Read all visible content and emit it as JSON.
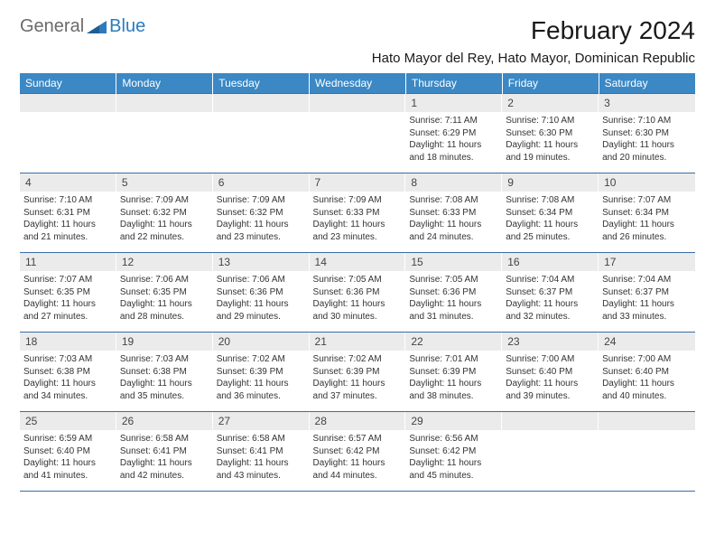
{
  "logo": {
    "text1": "General",
    "text2": "Blue"
  },
  "title": "February 2024",
  "location": "Hato Mayor del Rey, Hato Mayor, Dominican Republic",
  "colors": {
    "header_bg": "#3b88c4",
    "header_text": "#ffffff",
    "daynum_bg": "#ebebeb",
    "row_border": "#3b6ea5",
    "logo_gray": "#6b6b6b",
    "logo_blue": "#2b7bbd"
  },
  "days_of_week": [
    "Sunday",
    "Monday",
    "Tuesday",
    "Wednesday",
    "Thursday",
    "Friday",
    "Saturday"
  ],
  "weeks": [
    [
      {
        "blank": true
      },
      {
        "blank": true
      },
      {
        "blank": true
      },
      {
        "blank": true
      },
      {
        "num": "1",
        "sunrise": "Sunrise: 7:11 AM",
        "sunset": "Sunset: 6:29 PM",
        "daylight": "Daylight: 11 hours and 18 minutes."
      },
      {
        "num": "2",
        "sunrise": "Sunrise: 7:10 AM",
        "sunset": "Sunset: 6:30 PM",
        "daylight": "Daylight: 11 hours and 19 minutes."
      },
      {
        "num": "3",
        "sunrise": "Sunrise: 7:10 AM",
        "sunset": "Sunset: 6:30 PM",
        "daylight": "Daylight: 11 hours and 20 minutes."
      }
    ],
    [
      {
        "num": "4",
        "sunrise": "Sunrise: 7:10 AM",
        "sunset": "Sunset: 6:31 PM",
        "daylight": "Daylight: 11 hours and 21 minutes."
      },
      {
        "num": "5",
        "sunrise": "Sunrise: 7:09 AM",
        "sunset": "Sunset: 6:32 PM",
        "daylight": "Daylight: 11 hours and 22 minutes."
      },
      {
        "num": "6",
        "sunrise": "Sunrise: 7:09 AM",
        "sunset": "Sunset: 6:32 PM",
        "daylight": "Daylight: 11 hours and 23 minutes."
      },
      {
        "num": "7",
        "sunrise": "Sunrise: 7:09 AM",
        "sunset": "Sunset: 6:33 PM",
        "daylight": "Daylight: 11 hours and 23 minutes."
      },
      {
        "num": "8",
        "sunrise": "Sunrise: 7:08 AM",
        "sunset": "Sunset: 6:33 PM",
        "daylight": "Daylight: 11 hours and 24 minutes."
      },
      {
        "num": "9",
        "sunrise": "Sunrise: 7:08 AM",
        "sunset": "Sunset: 6:34 PM",
        "daylight": "Daylight: 11 hours and 25 minutes."
      },
      {
        "num": "10",
        "sunrise": "Sunrise: 7:07 AM",
        "sunset": "Sunset: 6:34 PM",
        "daylight": "Daylight: 11 hours and 26 minutes."
      }
    ],
    [
      {
        "num": "11",
        "sunrise": "Sunrise: 7:07 AM",
        "sunset": "Sunset: 6:35 PM",
        "daylight": "Daylight: 11 hours and 27 minutes."
      },
      {
        "num": "12",
        "sunrise": "Sunrise: 7:06 AM",
        "sunset": "Sunset: 6:35 PM",
        "daylight": "Daylight: 11 hours and 28 minutes."
      },
      {
        "num": "13",
        "sunrise": "Sunrise: 7:06 AM",
        "sunset": "Sunset: 6:36 PM",
        "daylight": "Daylight: 11 hours and 29 minutes."
      },
      {
        "num": "14",
        "sunrise": "Sunrise: 7:05 AM",
        "sunset": "Sunset: 6:36 PM",
        "daylight": "Daylight: 11 hours and 30 minutes."
      },
      {
        "num": "15",
        "sunrise": "Sunrise: 7:05 AM",
        "sunset": "Sunset: 6:36 PM",
        "daylight": "Daylight: 11 hours and 31 minutes."
      },
      {
        "num": "16",
        "sunrise": "Sunrise: 7:04 AM",
        "sunset": "Sunset: 6:37 PM",
        "daylight": "Daylight: 11 hours and 32 minutes."
      },
      {
        "num": "17",
        "sunrise": "Sunrise: 7:04 AM",
        "sunset": "Sunset: 6:37 PM",
        "daylight": "Daylight: 11 hours and 33 minutes."
      }
    ],
    [
      {
        "num": "18",
        "sunrise": "Sunrise: 7:03 AM",
        "sunset": "Sunset: 6:38 PM",
        "daylight": "Daylight: 11 hours and 34 minutes."
      },
      {
        "num": "19",
        "sunrise": "Sunrise: 7:03 AM",
        "sunset": "Sunset: 6:38 PM",
        "daylight": "Daylight: 11 hours and 35 minutes."
      },
      {
        "num": "20",
        "sunrise": "Sunrise: 7:02 AM",
        "sunset": "Sunset: 6:39 PM",
        "daylight": "Daylight: 11 hours and 36 minutes."
      },
      {
        "num": "21",
        "sunrise": "Sunrise: 7:02 AM",
        "sunset": "Sunset: 6:39 PM",
        "daylight": "Daylight: 11 hours and 37 minutes."
      },
      {
        "num": "22",
        "sunrise": "Sunrise: 7:01 AM",
        "sunset": "Sunset: 6:39 PM",
        "daylight": "Daylight: 11 hours and 38 minutes."
      },
      {
        "num": "23",
        "sunrise": "Sunrise: 7:00 AM",
        "sunset": "Sunset: 6:40 PM",
        "daylight": "Daylight: 11 hours and 39 minutes."
      },
      {
        "num": "24",
        "sunrise": "Sunrise: 7:00 AM",
        "sunset": "Sunset: 6:40 PM",
        "daylight": "Daylight: 11 hours and 40 minutes."
      }
    ],
    [
      {
        "num": "25",
        "sunrise": "Sunrise: 6:59 AM",
        "sunset": "Sunset: 6:40 PM",
        "daylight": "Daylight: 11 hours and 41 minutes."
      },
      {
        "num": "26",
        "sunrise": "Sunrise: 6:58 AM",
        "sunset": "Sunset: 6:41 PM",
        "daylight": "Daylight: 11 hours and 42 minutes."
      },
      {
        "num": "27",
        "sunrise": "Sunrise: 6:58 AM",
        "sunset": "Sunset: 6:41 PM",
        "daylight": "Daylight: 11 hours and 43 minutes."
      },
      {
        "num": "28",
        "sunrise": "Sunrise: 6:57 AM",
        "sunset": "Sunset: 6:42 PM",
        "daylight": "Daylight: 11 hours and 44 minutes."
      },
      {
        "num": "29",
        "sunrise": "Sunrise: 6:56 AM",
        "sunset": "Sunset: 6:42 PM",
        "daylight": "Daylight: 11 hours and 45 minutes."
      },
      {
        "blank": true
      },
      {
        "blank": true
      }
    ]
  ]
}
